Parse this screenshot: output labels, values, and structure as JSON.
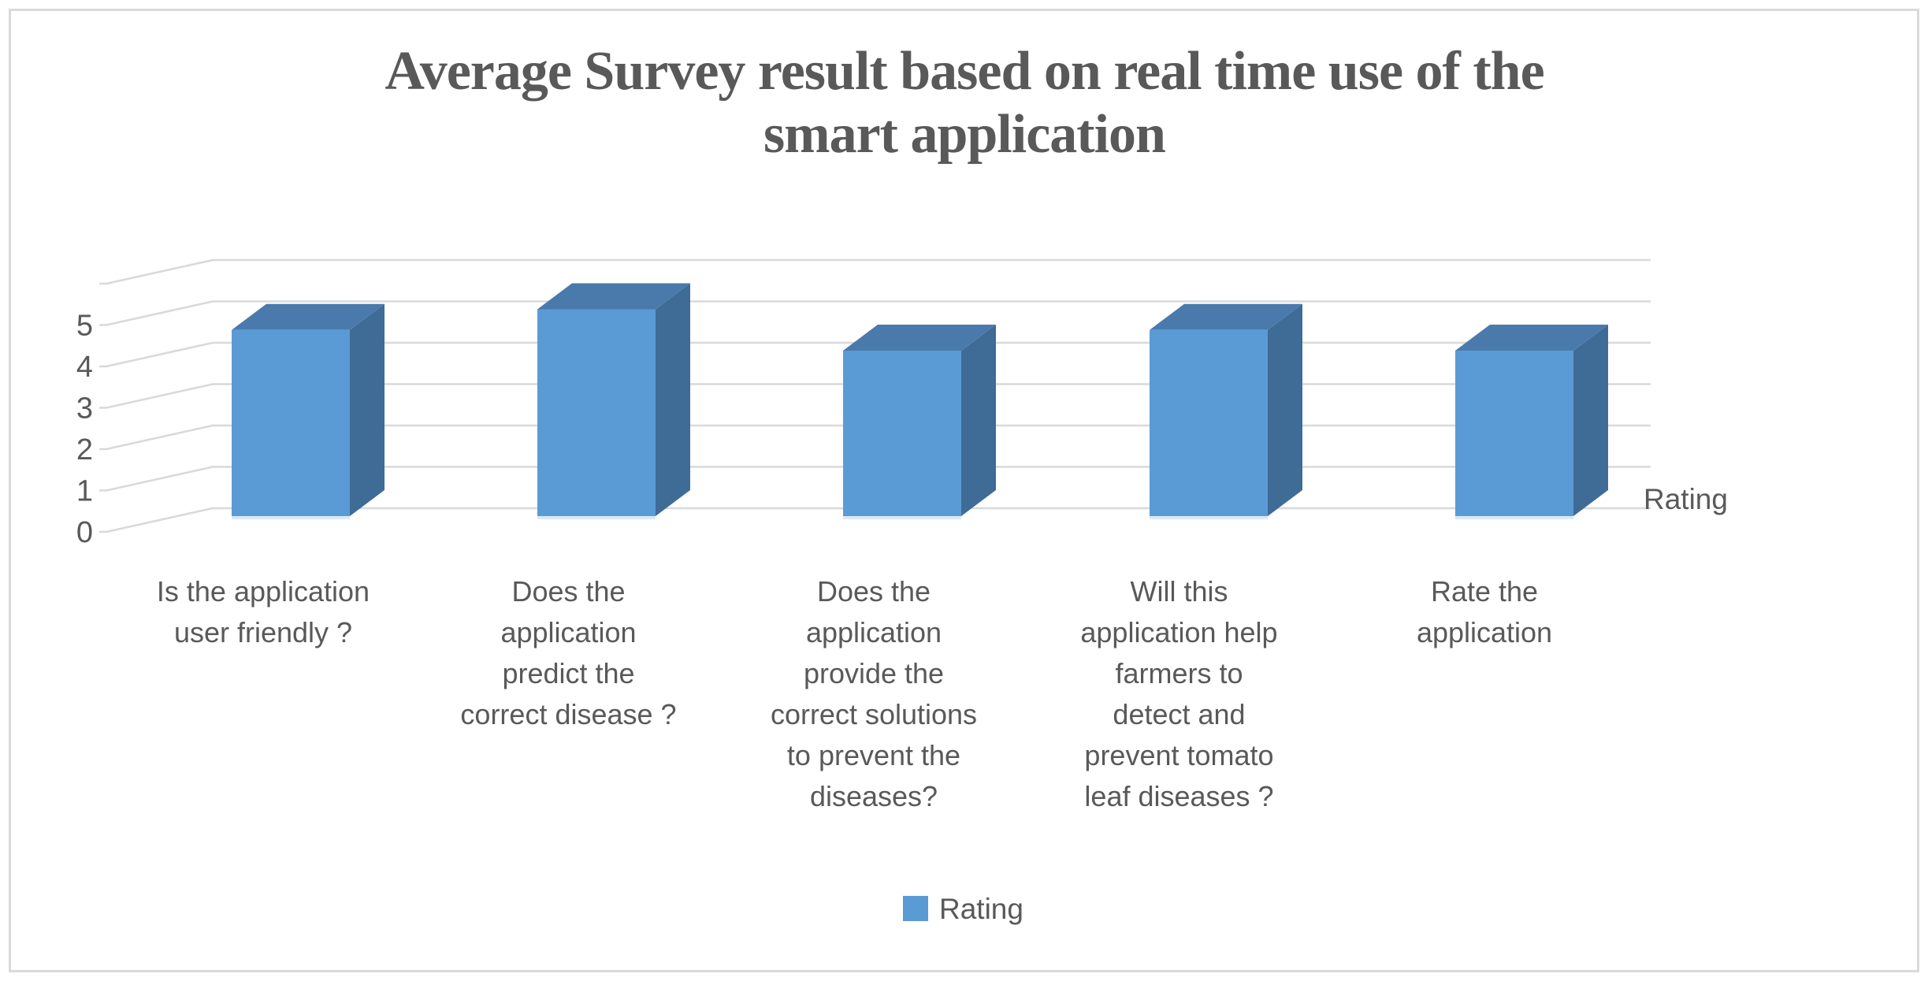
{
  "title": {
    "line1": "Average Survey result based on real time use of the",
    "line2": "smart application"
  },
  "value_axis": {
    "tick_labels": [
      "0",
      "1",
      "2",
      "3",
      "4",
      "5"
    ],
    "side_label": "Rating"
  },
  "legend": {
    "label": "Rating"
  },
  "chart_data": {
    "type": "bar",
    "subtype": "3d-clustered-column",
    "title": "Average Survey result based on real time use of the smart application",
    "categories": [
      "Is the application user friendly ?",
      "Does the application predict the correct disease ?",
      "Does the application provide the correct solutions to prevent the diseases?",
      "Will this application help farmers to detect and prevent tomato leaf diseases ?",
      "Rate the application"
    ],
    "categories_wrapped": [
      [
        "Is the application",
        "user friendly ?"
      ],
      [
        "Does the",
        "application",
        "predict the",
        "correct disease ?"
      ],
      [
        "Does the",
        "application",
        "provide the",
        "correct solutions",
        "to prevent the",
        "diseases?"
      ],
      [
        "Will this",
        "application help",
        "farmers to",
        "detect and",
        "prevent tomato",
        "leaf diseases ?"
      ],
      [
        "Rate the",
        "application"
      ]
    ],
    "series": [
      {
        "name": "Rating",
        "values": [
          4.5,
          5,
          4,
          4.5,
          4
        ]
      }
    ],
    "ylim": [
      0,
      5
    ],
    "yticks": [
      0,
      1,
      2,
      3,
      4,
      5
    ],
    "grid": true,
    "legend_position": "bottom",
    "value_axis_title": "Rating"
  },
  "colors": {
    "bar_front": "#5B9BD5",
    "bar_top": "#4A7AAB",
    "bar_side": "#3F6B97",
    "bar_base_highlight": "#DCE9F5",
    "grid": "#D9D9D9",
    "text": "#595959",
    "title_text": "#595959",
    "frame_border": "#D9D9D9",
    "legend_swatch": "#5B9BD5"
  }
}
